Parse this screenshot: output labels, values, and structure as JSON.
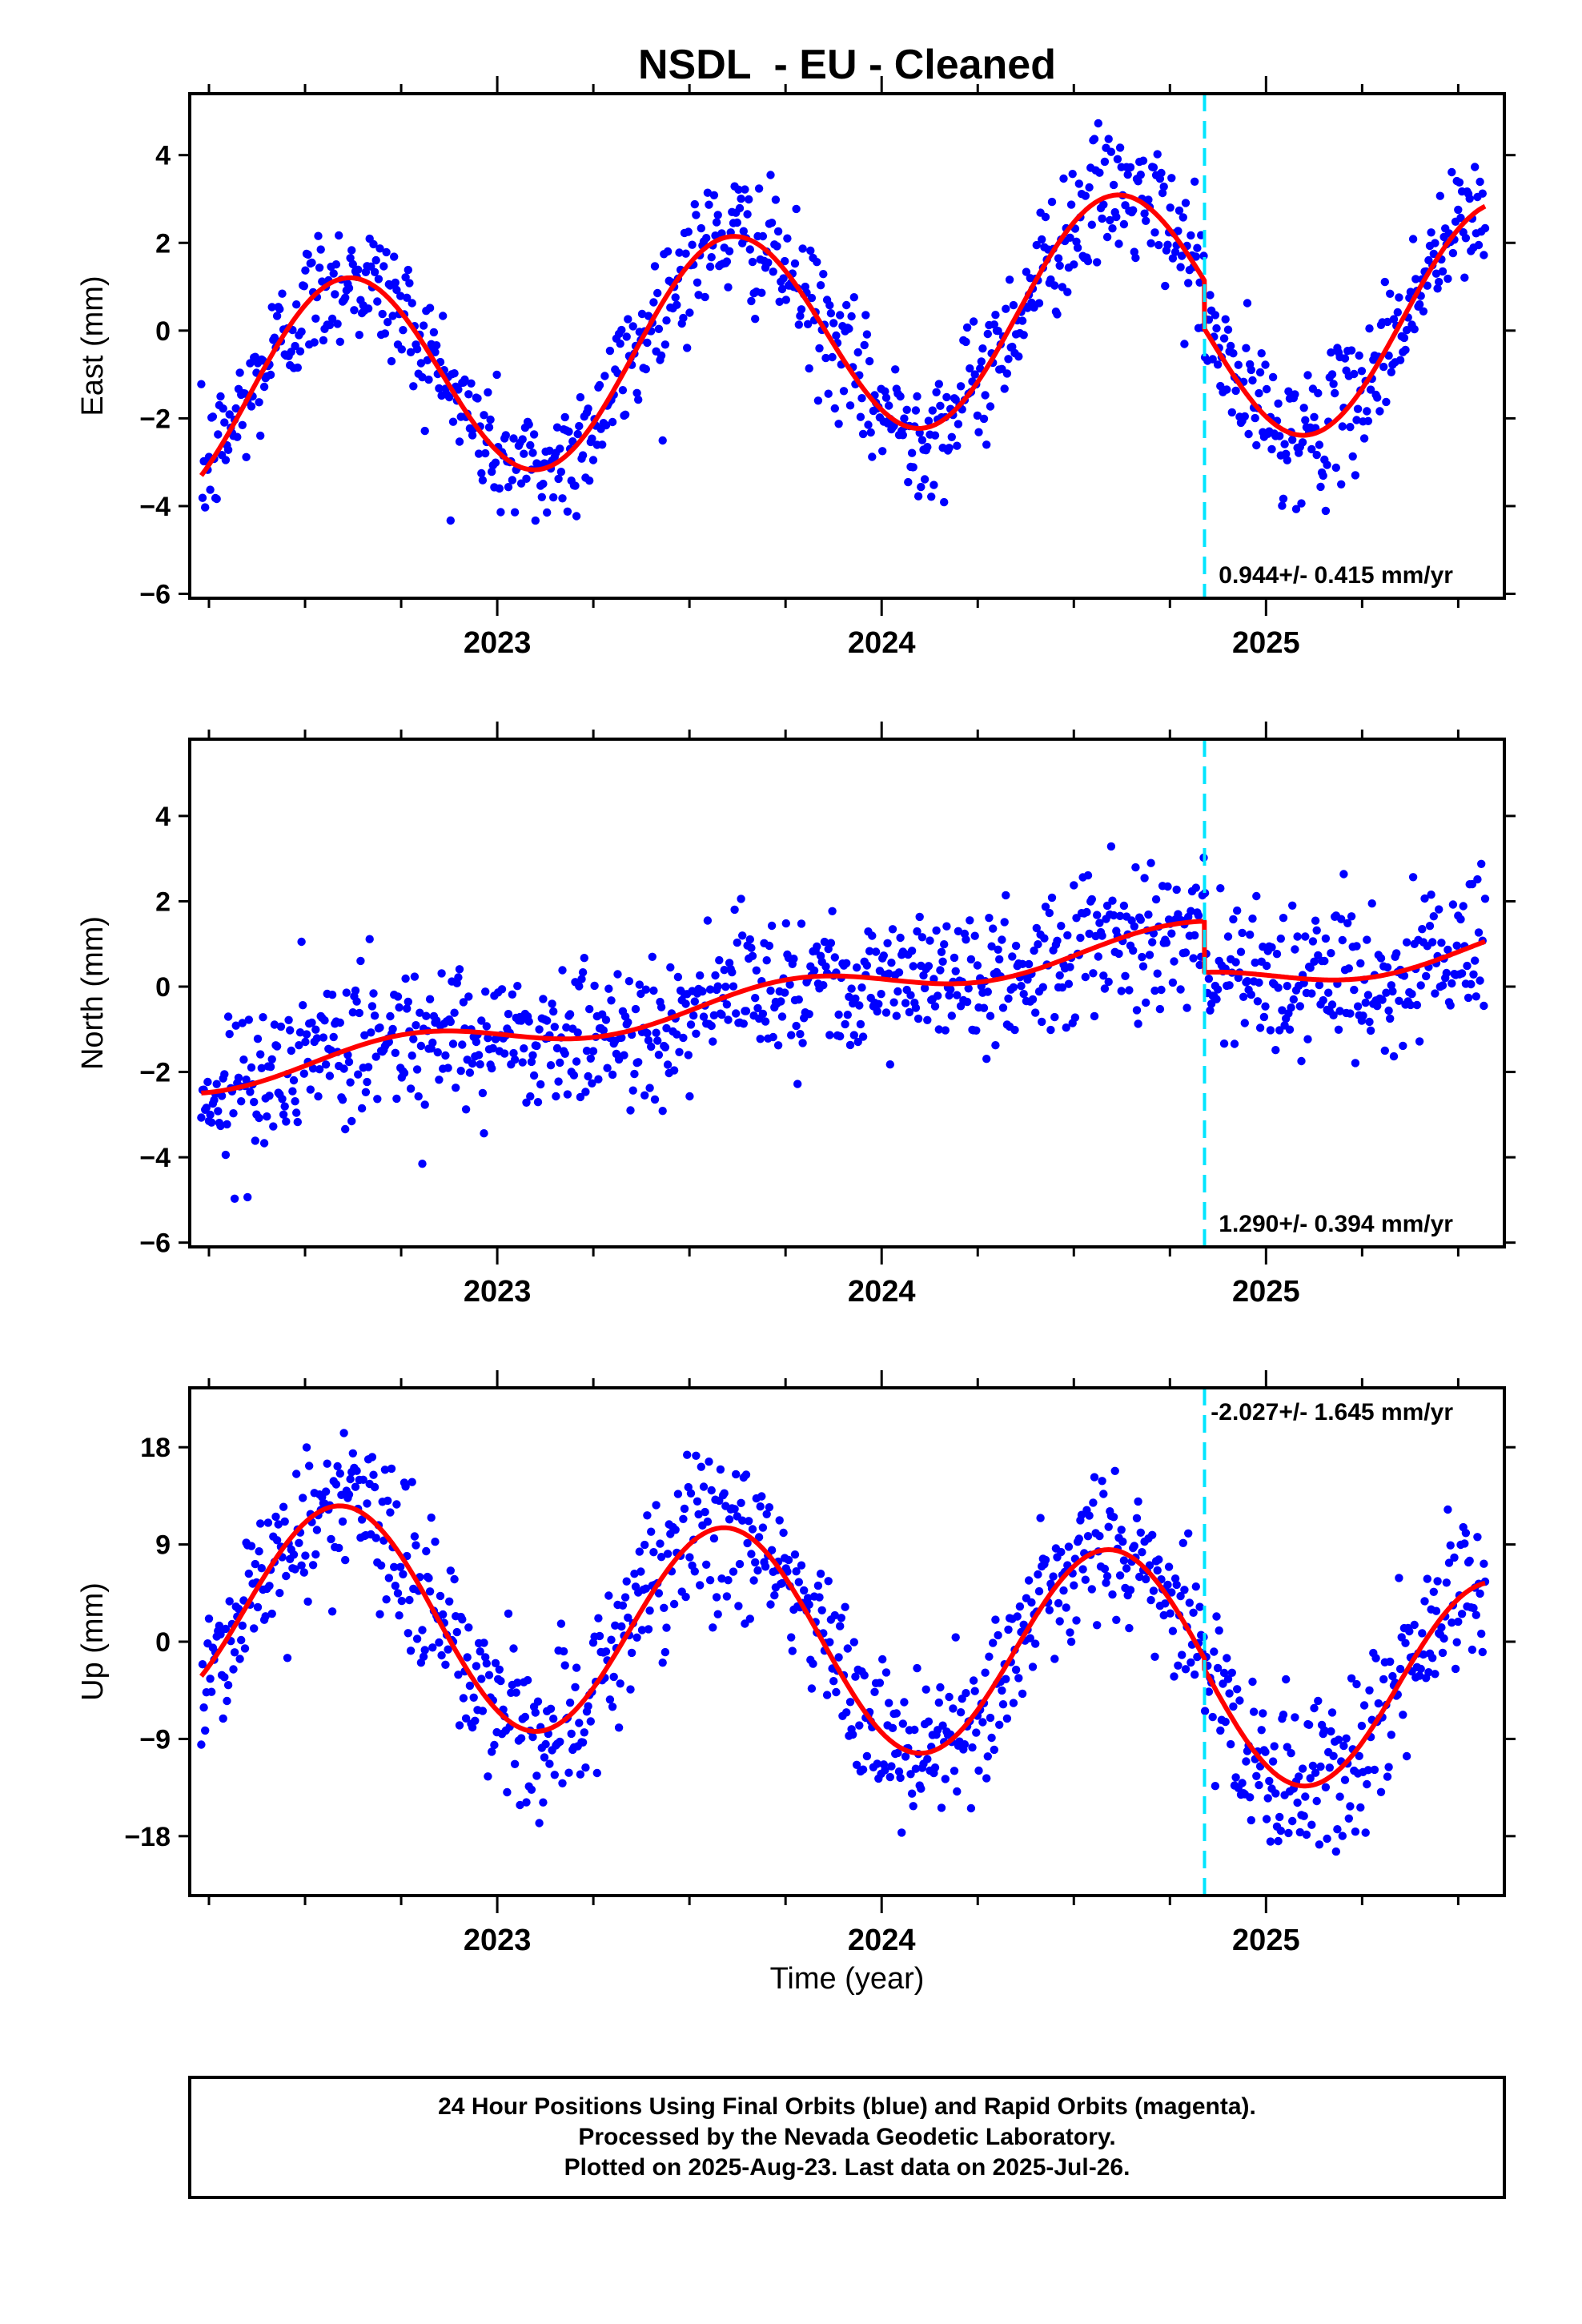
{
  "title": "NSDL  - EU - Cleaned",
  "x_axis_label": "Time (year)",
  "footer": {
    "line1": "24 Hour Positions Using Final Orbits (blue) and Rapid Orbits (magenta).",
    "line2": "Processed by the Nevada Geodetic Laboratory.",
    "line3": "Plotted on 2025-Aug-23. Last data on 2025-Jul-26."
  },
  "colors": {
    "final_orbits": "#0000ff",
    "model_fit": "#ff0000",
    "equipment_change": "#00e5ff",
    "frame": "#000000"
  },
  "chart_data": [
    {
      "type": "scatter",
      "component": "east",
      "ylabel": "East (mm)",
      "xlim": [
        2022.2,
        2025.62
      ],
      "ylim": [
        -6.1,
        5.4
      ],
      "yticks": [
        4,
        2,
        0,
        -2,
        -4,
        -6
      ],
      "xticks": [
        2023,
        2024,
        2025
      ],
      "rate_label": "0.944+/- 0.415 mm/yr",
      "equipment_change_x": 2024.84,
      "series": [
        {
          "kind": "points",
          "x_start": 2022.23,
          "x_end": 2025.57,
          "count": 1000,
          "noise_mm": 0.75
        },
        {
          "kind": "model",
          "trend_mm_per_yr": 0.944,
          "annual_cos": -1.9,
          "annual_sin": -1.5,
          "offset_at_change_mm": -1.1
        }
      ]
    },
    {
      "type": "scatter",
      "component": "north",
      "ylabel": "North (mm)",
      "xlim": [
        2022.2,
        2025.62
      ],
      "ylim": [
        -6.1,
        5.8
      ],
      "yticks": [
        4,
        2,
        0,
        -2,
        -4,
        -6
      ],
      "xticks": [
        2023,
        2024,
        2025
      ],
      "rate_label": "1.290+/- 0.394 mm/yr",
      "equipment_change_x": 2024.84,
      "series": [
        {
          "kind": "points",
          "x_start": 2022.23,
          "x_end": 2025.57,
          "count": 1000,
          "noise_mm": 0.85
        },
        {
          "kind": "model",
          "trend_mm_per_yr": 1.29,
          "annual_cos": 0.05,
          "annual_sin": -0.35,
          "offset_at_change_mm": -1.2
        }
      ]
    },
    {
      "type": "scatter",
      "component": "up",
      "ylabel": "Up (mm)",
      "xlim": [
        2022.2,
        2025.62
      ],
      "ylim": [
        -23.5,
        23.5
      ],
      "yticks": [
        18,
        9,
        0,
        -9,
        -18
      ],
      "xticks": [
        2023,
        2024,
        2025
      ],
      "rate_label": "-2.027+/- 1.645 mm/yr",
      "equipment_change_x": 2024.84,
      "series": [
        {
          "kind": "points",
          "x_start": 2022.23,
          "x_end": 2025.57,
          "count": 1000,
          "noise_mm": 3.8
        },
        {
          "kind": "model",
          "trend_mm_per_yr": -2.027,
          "annual_cos": -8.2,
          "annual_sin": -5.6,
          "offset_at_change_mm": -1.0
        }
      ]
    }
  ]
}
